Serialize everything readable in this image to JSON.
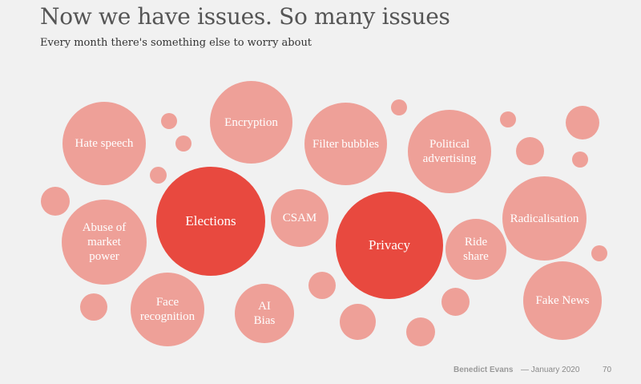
{
  "title": "Now we have issues. So many issues",
  "subtitle": "Every month there's something else to worry about",
  "issues": {
    "hate_speech": "Hate speech",
    "encryption": "Encryption",
    "filter_bubbles": "Filter bubbles",
    "political_advertising": "Political advertising",
    "abuse_of_market_power": "Abuse of market power",
    "elections": "Elections",
    "csam": "CSAM",
    "privacy": "Privacy",
    "ride_share": "Ride share",
    "radicalisation": "Radicalisation",
    "face_recognition": "Face recognition",
    "ai_bias": "AI Bias",
    "fake_news": "Fake News"
  },
  "colors": {
    "light": "#eea098",
    "strong": "#e8493f"
  },
  "footer": {
    "author": "Benedict Evans",
    "date": "— January 2020",
    "page": "70"
  }
}
